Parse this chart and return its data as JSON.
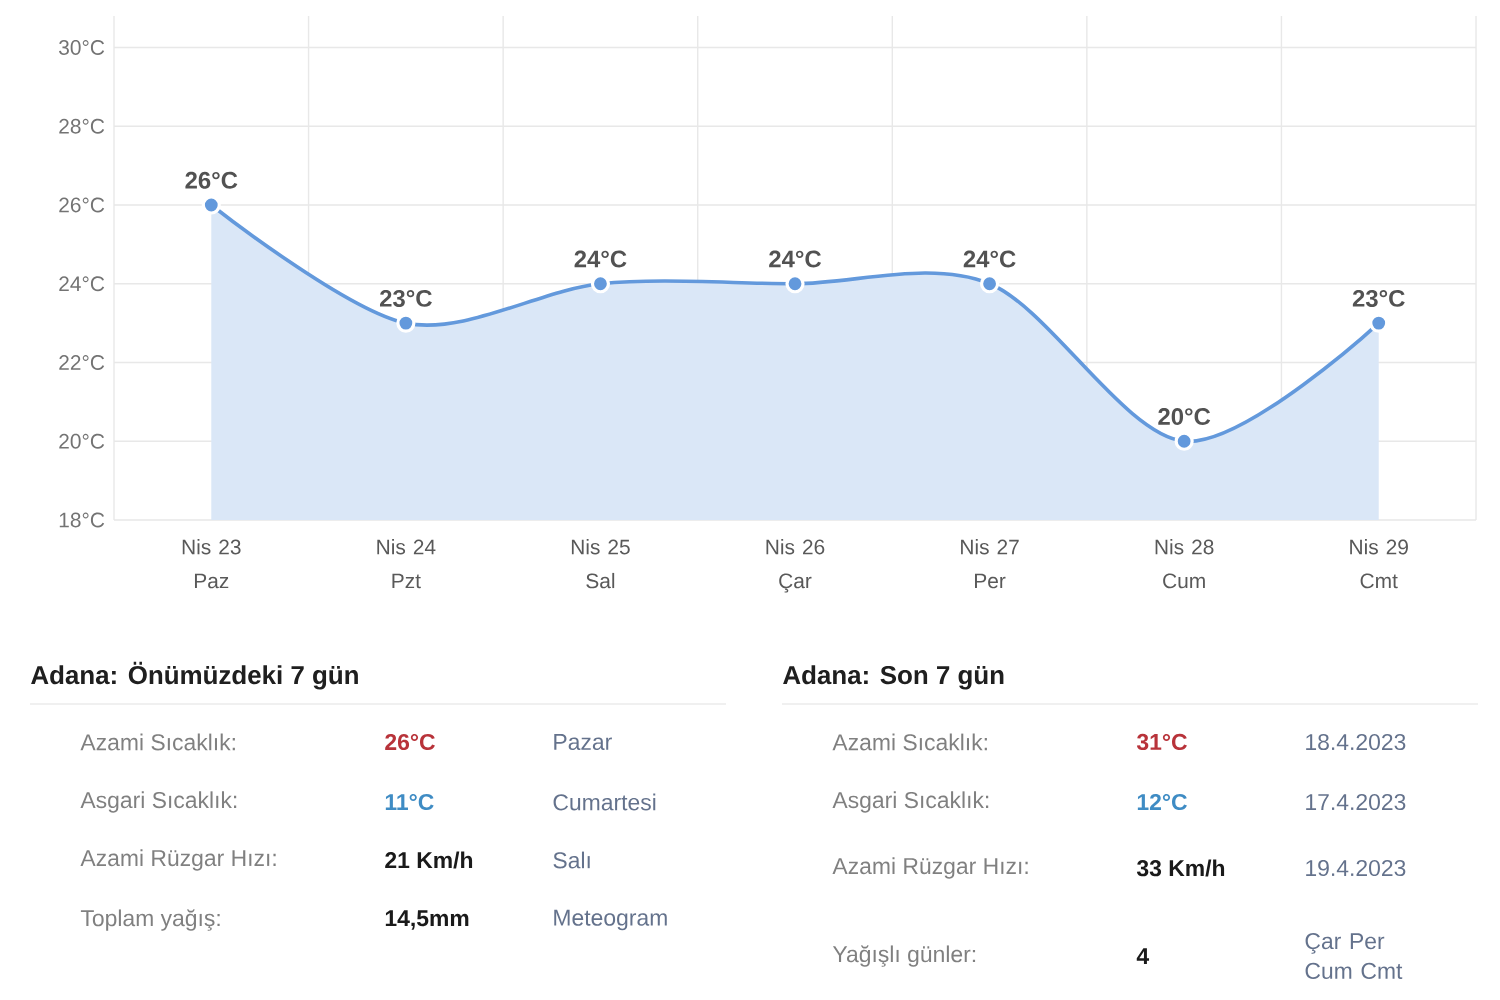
{
  "chart_data": [
    {
      "type": "area",
      "categories": [
        "Nis 23 Paz",
        "Nis 24 Pzt",
        "Nis 25 Sal",
        "Nis 26 Çar",
        "Nis 27 Per",
        "Nis 28 Cum",
        "Nis 29 Cmt"
      ],
      "values": [
        26,
        23,
        24,
        24,
        24,
        20,
        23
      ],
      "value_labels": [
        "26°C",
        "23°C",
        "24°C",
        "24°C",
        "24°C",
        "20°C",
        "23°C"
      ],
      "color": "#6399dc",
      "ylim": [
        18,
        30.8
      ],
      "yticks": [
        {
          "value": 18,
          "label": "18°C"
        },
        {
          "value": 20,
          "label": "20°C"
        },
        {
          "value": 22,
          "label": "22°C"
        },
        {
          "value": 24,
          "label": "24°C"
        },
        {
          "value": 26,
          "label": "26°C"
        },
        {
          "value": 28,
          "label": "28°C"
        },
        {
          "value": 30,
          "label": "30°C"
        }
      ],
      "grid": true,
      "marker": "circle",
      "line_style": "solid"
    },
    {
      "type": "other",
      "title": "Adana: Önümüzdeki 7 gün",
      "annotations": [
        "Azami Sıcaklık:",
        "26°C",
        "Pazar",
        "Asgari Sıcaklık:",
        "11°C",
        "Cumartesi",
        "Azami Rüzgar Hızı:",
        "21 Km/h",
        "Salı",
        "Toplam yağış:",
        "14,5mm",
        "Meteogram"
      ]
    },
    {
      "type": "other",
      "title": "Adana: Son 7 gün",
      "annotations": [
        "Azami Sıcaklık:",
        "31°C",
        "18.4.2023",
        "Asgari Sıcaklık:",
        "12°C",
        "17.4.2023",
        "Azami Rüzgar Hızı:",
        "33 Km/h",
        "19.4.2023",
        "Yağışlı günler:",
        "4",
        "Çar Per Cum Cmt"
      ]
    }
  ]
}
